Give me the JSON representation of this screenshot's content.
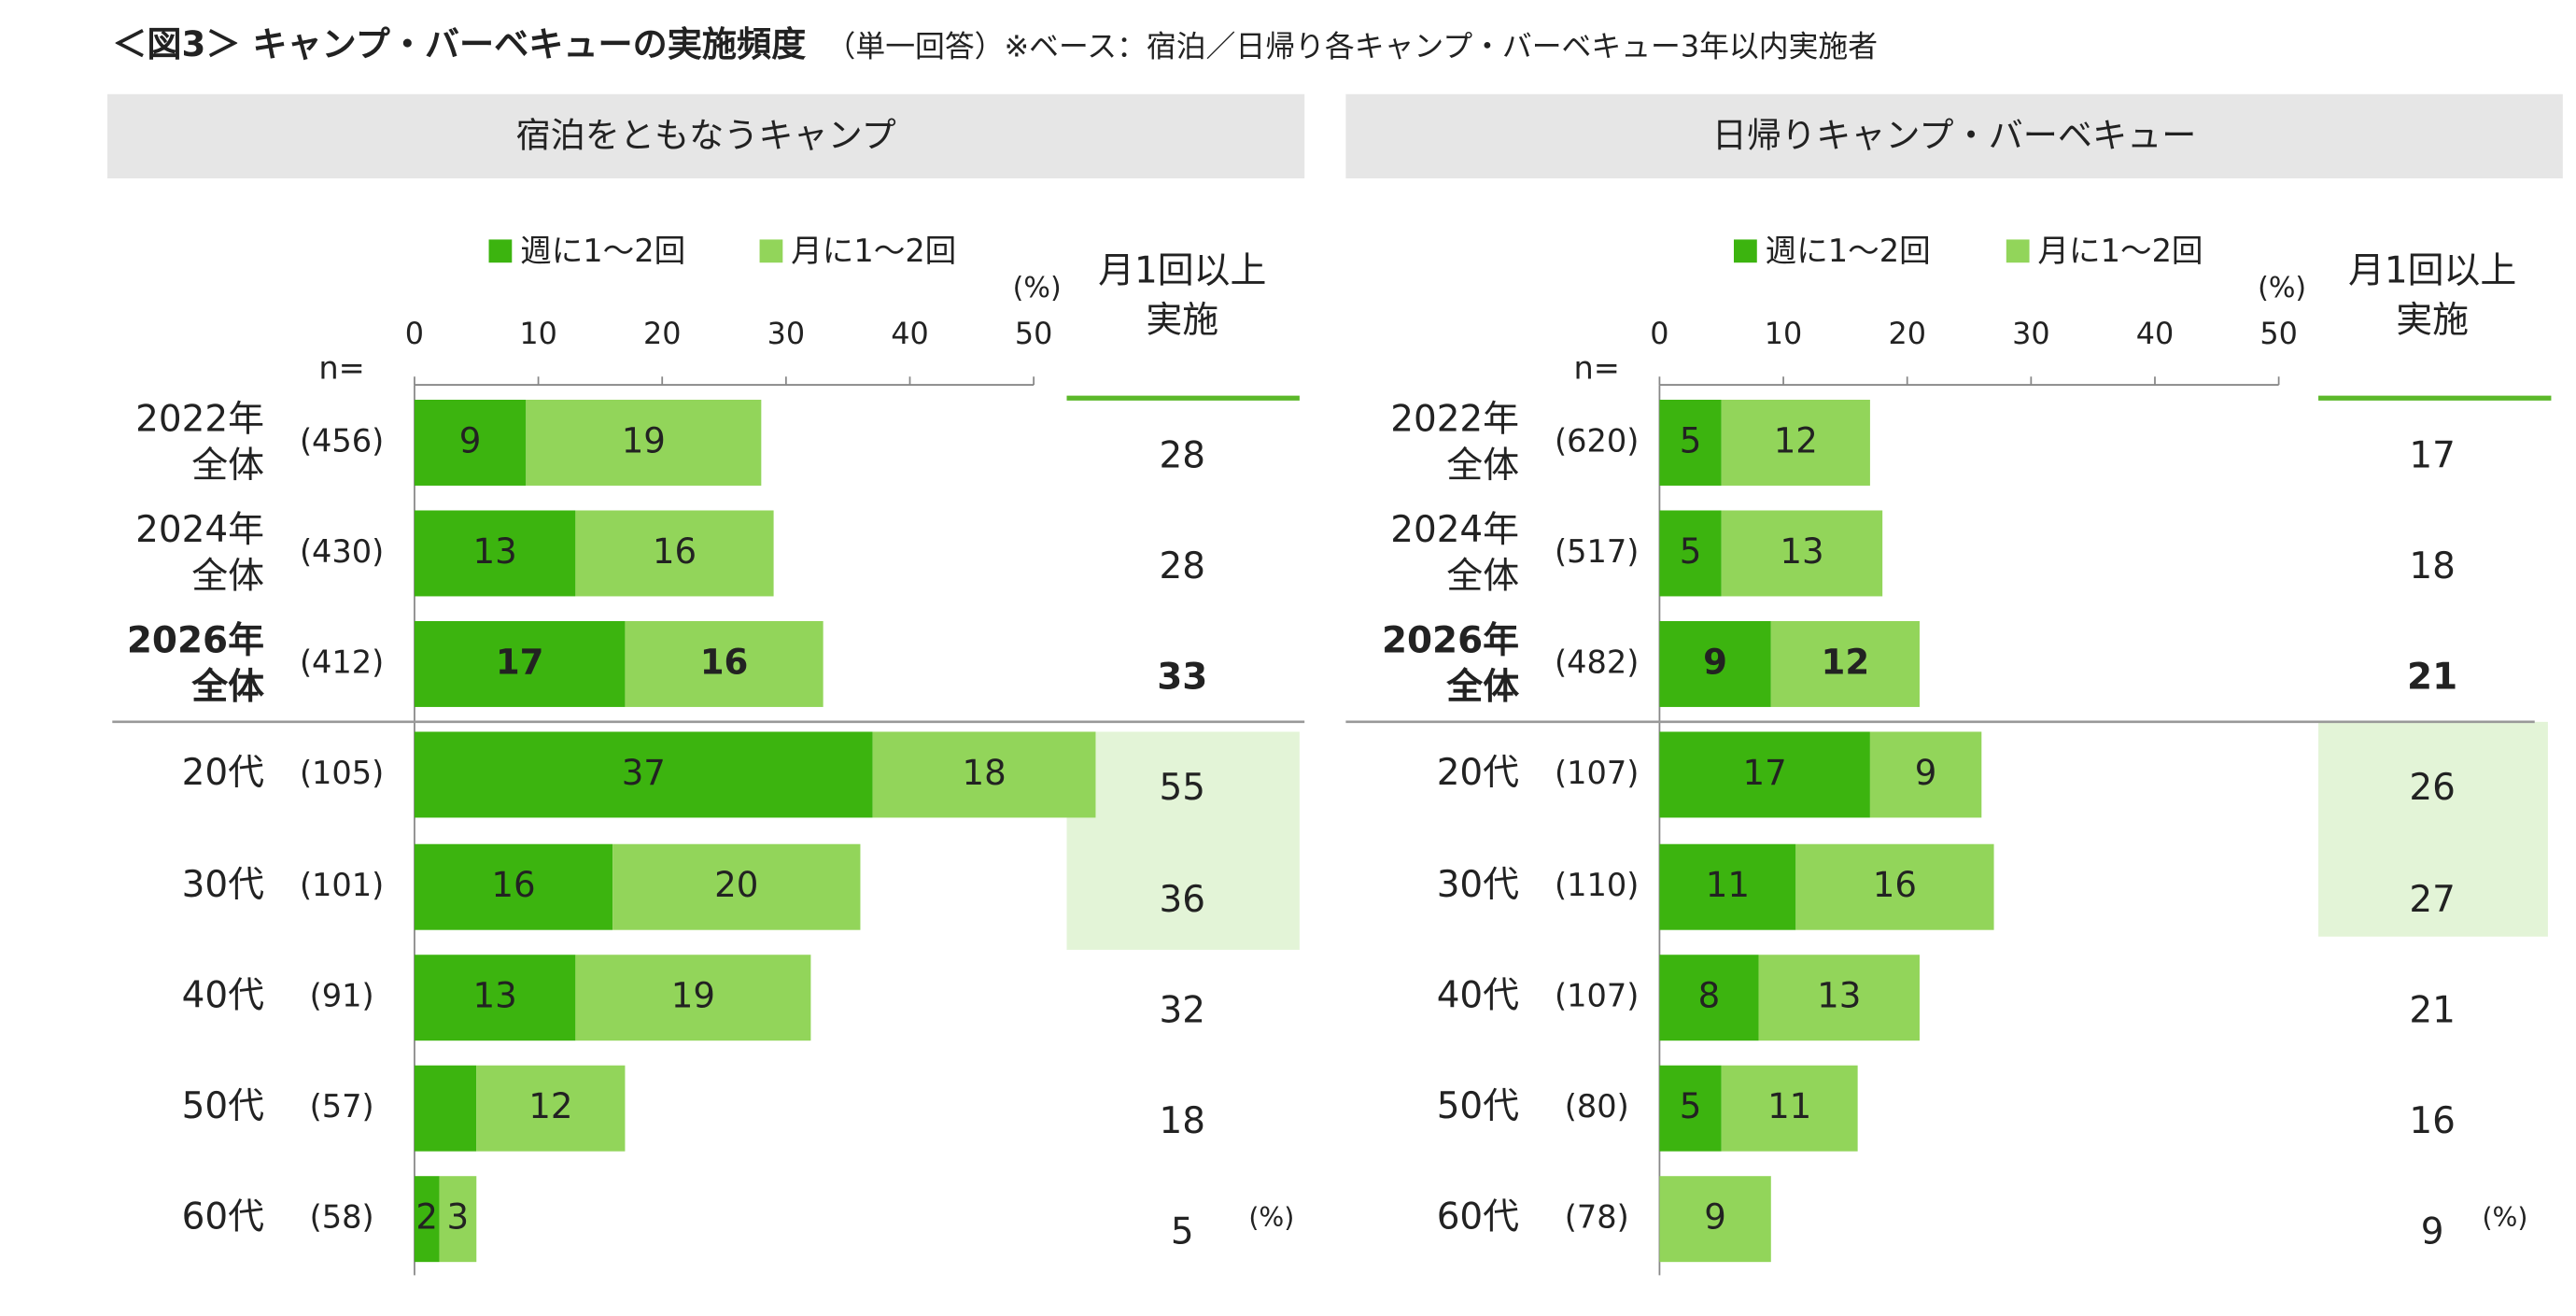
{
  "title": "＜図3＞ キャンプ・バーベキューの実施頻度",
  "subtitle": "（単一回答）※ベース：宿泊／日帰り各キャンプ・バーベキュー3年以内実施者",
  "chart_data": [
    {
      "type": "bar",
      "orientation": "horizontal",
      "stacked": true,
      "title": "宿泊をともなうキャンプ",
      "categories": [
        [
          "2022年",
          "全体"
        ],
        [
          "2024年",
          "全体"
        ],
        [
          "2026年",
          "全体"
        ],
        [
          "20代"
        ],
        [
          "30代"
        ],
        [
          "40代"
        ],
        [
          "50代"
        ],
        [
          "60代"
        ]
      ],
      "n_header": "n=",
      "n": [
        456,
        430,
        412,
        105,
        101,
        91,
        57,
        58
      ],
      "n_labels": [
        "(456)",
        "(430)",
        "(412)",
        "(105)",
        "(101)",
        "(91)",
        "(57)",
        "(58)"
      ],
      "series": [
        {
          "name": "週に1～2回",
          "color": "#3cb40f",
          "values": [
            9,
            13,
            17,
            37,
            16,
            13,
            5,
            2
          ],
          "value_labels": [
            "9",
            "13",
            "17",
            "37",
            "16",
            "13",
            null,
            "2"
          ]
        },
        {
          "name": "月に1～2回",
          "color": "#92d55a",
          "values": [
            19,
            16,
            16,
            18,
            20,
            19,
            12,
            3
          ],
          "value_labels": [
            "19",
            "16",
            "16",
            "18",
            "20",
            "19",
            "12",
            "3"
          ]
        }
      ],
      "xlim": [
        0,
        50
      ],
      "xticks": [
        0,
        10,
        20,
        30,
        40,
        50
      ],
      "unit": "(%)",
      "total_title": [
        "月1回以上",
        "実施"
      ],
      "totals": [
        28,
        28,
        33,
        55,
        36,
        32,
        18,
        5
      ],
      "bold_rows": [
        2
      ],
      "highlight_rows": [
        3,
        4
      ],
      "highlight_color": "#e3f4d7",
      "legend": "top"
    },
    {
      "type": "bar",
      "orientation": "horizontal",
      "stacked": true,
      "title": "日帰りキャンプ・バーベキュー",
      "categories": [
        [
          "2022年",
          "全体"
        ],
        [
          "2024年",
          "全体"
        ],
        [
          "2026年",
          "全体"
        ],
        [
          "20代"
        ],
        [
          "30代"
        ],
        [
          "40代"
        ],
        [
          "50代"
        ],
        [
          "60代"
        ]
      ],
      "n_header": "n=",
      "n": [
        620,
        517,
        482,
        107,
        110,
        107,
        80,
        78
      ],
      "n_labels": [
        "(620)",
        "(517)",
        "(482)",
        "(107)",
        "(110)",
        "(107)",
        "(80)",
        "(78)"
      ],
      "series": [
        {
          "name": "週に1～2回",
          "color": "#3cb40f",
          "values": [
            5,
            5,
            9,
            17,
            11,
            8,
            5,
            0
          ],
          "value_labels": [
            "5",
            "5",
            "9",
            "17",
            "11",
            "8",
            "5",
            null
          ]
        },
        {
          "name": "月に1～2回",
          "color": "#92d55a",
          "values": [
            12,
            13,
            12,
            9,
            16,
            13,
            11,
            9
          ],
          "value_labels": [
            "12",
            "13",
            "12",
            "9",
            "16",
            "13",
            "11",
            "9"
          ]
        }
      ],
      "xlim": [
        0,
        50
      ],
      "xticks": [
        0,
        10,
        20,
        30,
        40,
        50
      ],
      "unit": "(%)",
      "total_title": [
        "月1回以上",
        "実施"
      ],
      "totals": [
        17,
        18,
        21,
        26,
        27,
        21,
        16,
        9
      ],
      "bold_rows": [
        2
      ],
      "highlight_rows": [
        3,
        4
      ],
      "highlight_color": "#e3f4d7",
      "legend": "top"
    }
  ]
}
